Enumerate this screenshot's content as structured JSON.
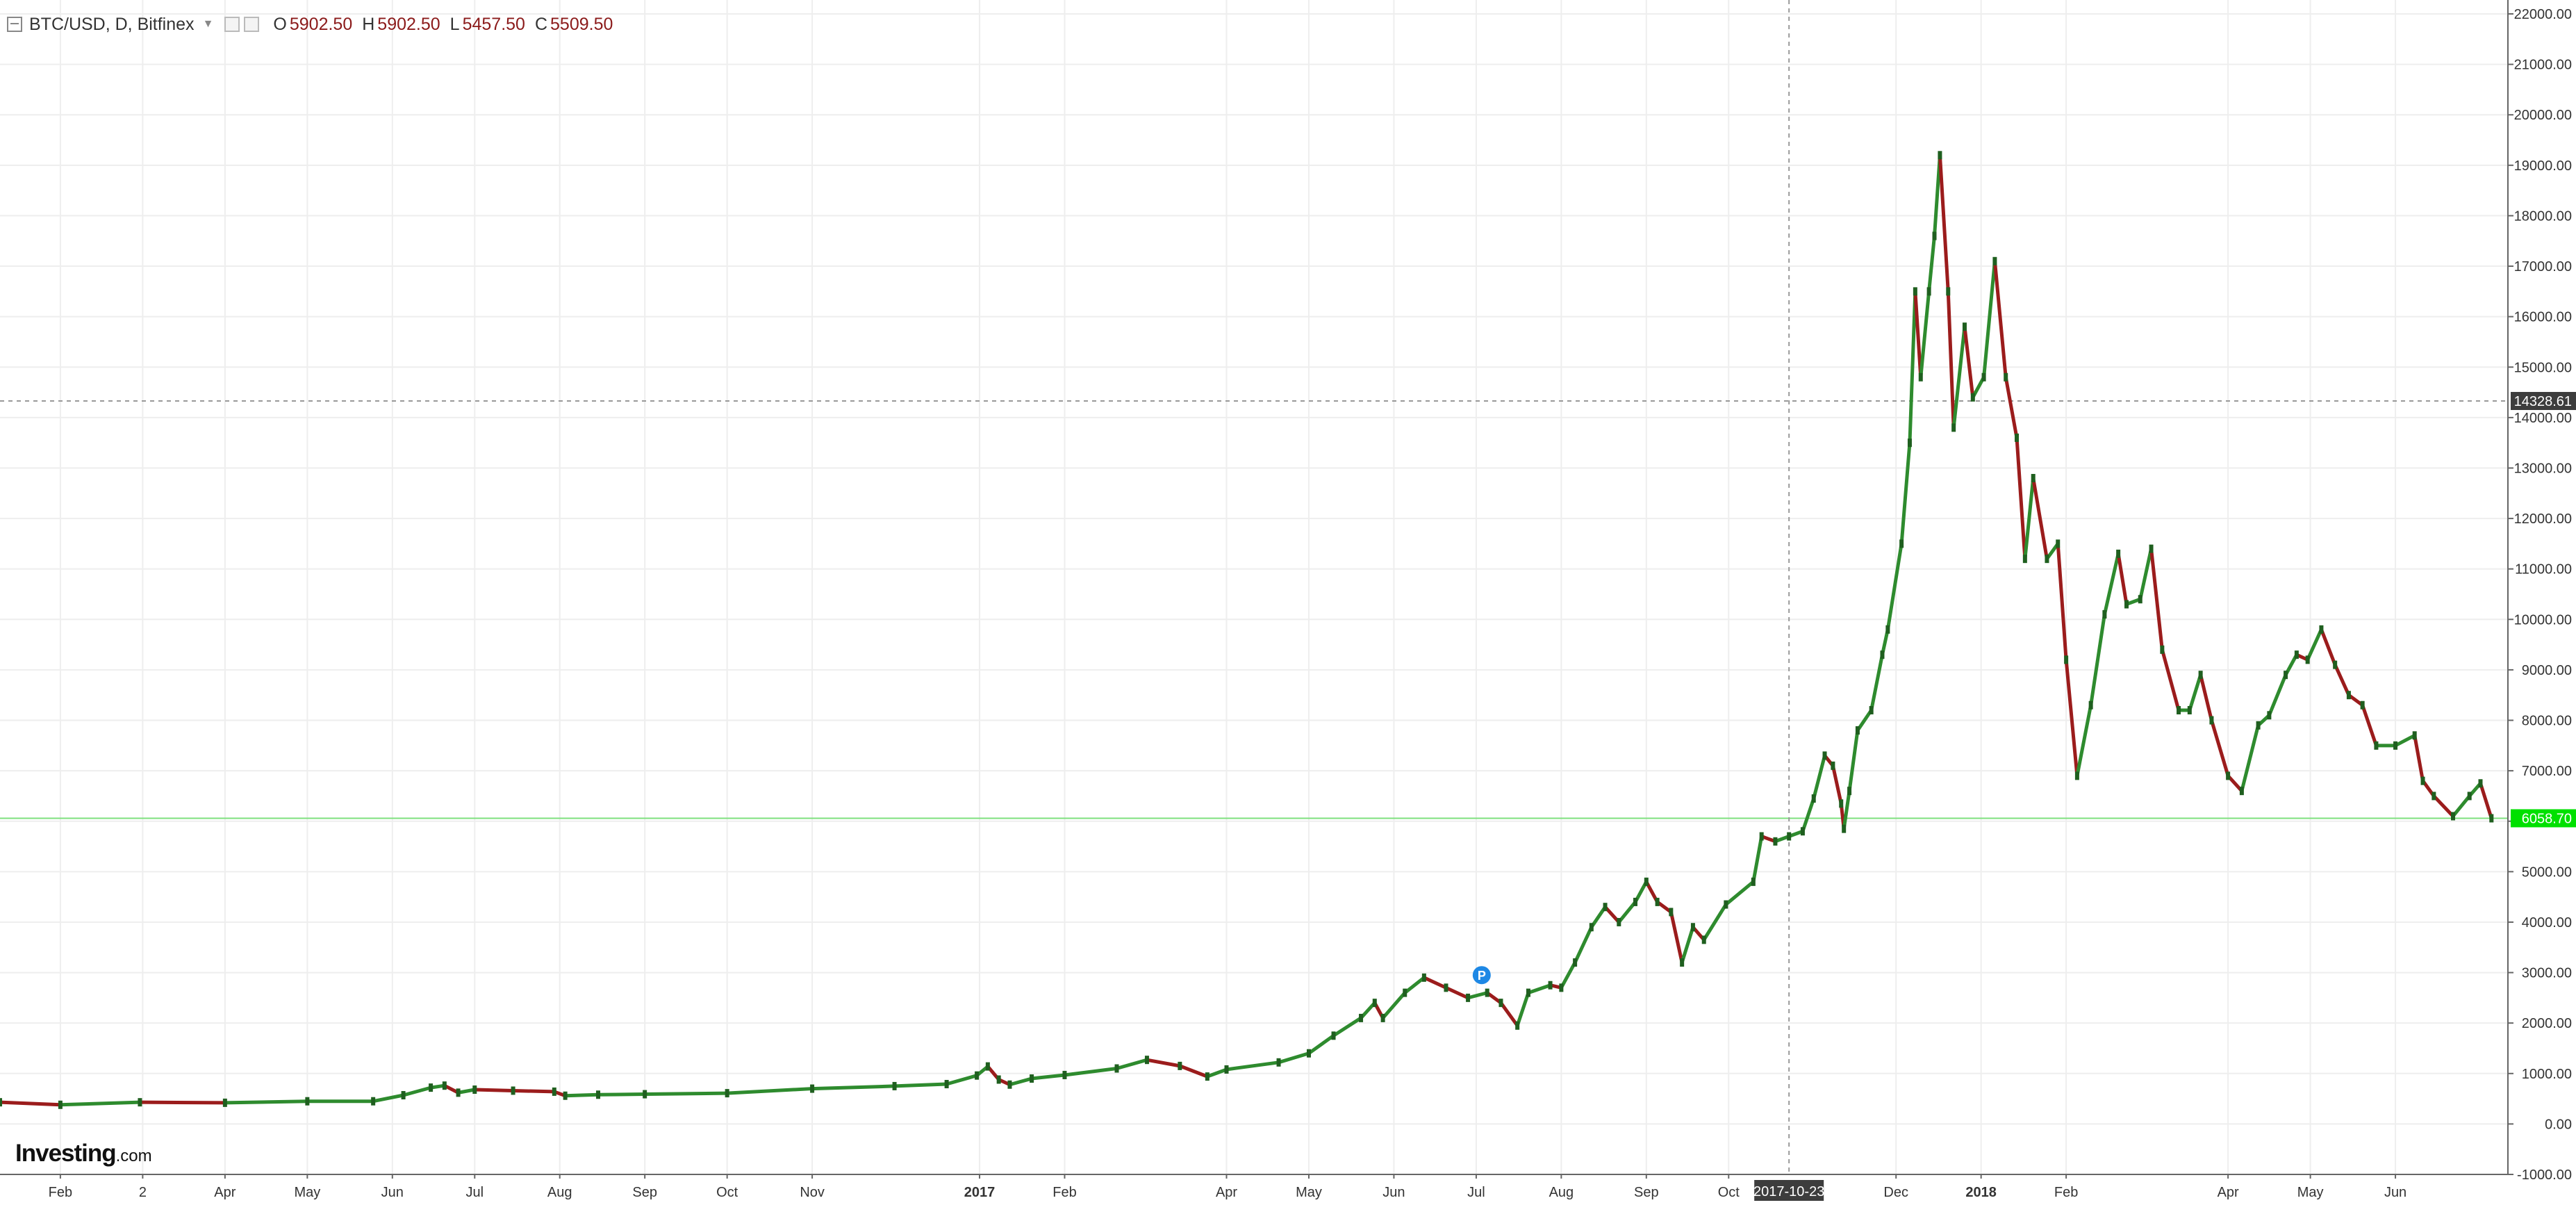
{
  "legend": {
    "symbol": "BTC/USD, D, Bitfinex",
    "open_label": "O",
    "open": "5902.50",
    "high_label": "H",
    "high": "5902.50",
    "low_label": "L",
    "low": "5457.50",
    "close_label": "C",
    "close": "5509.50"
  },
  "logo": {
    "main": "Investing",
    "suffix": ".com"
  },
  "colors": {
    "up": "#2e8b2e",
    "down": "#9b1c1c",
    "grid": "#eeeeee",
    "last_price": "#00e000",
    "crosshair_tag": "#3d3d3d"
  },
  "chart_data": {
    "type": "line",
    "title": "",
    "xlabel": "",
    "ylabel": "",
    "ylim": [
      -1000,
      22000
    ],
    "y_ticks": [
      "22000.00",
      "21000.00",
      "20000.00",
      "19000.00",
      "18000.00",
      "17000.00",
      "16000.00",
      "15000.00",
      "14000.00",
      "13000.00",
      "12000.00",
      "11000.00",
      "10000.00",
      "9000.00",
      "8000.00",
      "7000.00",
      "6000.00",
      "5000.00",
      "4000.00",
      "3000.00",
      "2000.00",
      "1000.00",
      "0.00",
      "-1000.00"
    ],
    "x_ticks": [
      {
        "label": "Feb",
        "date": "2016-02-01",
        "bold": false
      },
      {
        "label": "2",
        "date": "2016-03-02",
        "bold": false
      },
      {
        "label": "Apr",
        "date": "2016-04-01",
        "bold": false
      },
      {
        "label": "May",
        "date": "2016-05-01",
        "bold": false
      },
      {
        "label": "Jun",
        "date": "2016-06-01",
        "bold": false
      },
      {
        "label": "Jul",
        "date": "2016-07-01",
        "bold": false
      },
      {
        "label": "Aug",
        "date": "2016-08-01",
        "bold": false
      },
      {
        "label": "Sep",
        "date": "2016-09-01",
        "bold": false
      },
      {
        "label": "Oct",
        "date": "2016-10-01",
        "bold": false
      },
      {
        "label": "Nov",
        "date": "2016-11-01",
        "bold": false
      },
      {
        "label": "2017",
        "date": "2017-01-01",
        "bold": true
      },
      {
        "label": "Feb",
        "date": "2017-02-01",
        "bold": false
      },
      {
        "label": "Apr",
        "date": "2017-04-01",
        "bold": false
      },
      {
        "label": "May",
        "date": "2017-05-01",
        "bold": false
      },
      {
        "label": "Jun",
        "date": "2017-06-01",
        "bold": false
      },
      {
        "label": "Jul",
        "date": "2017-07-01",
        "bold": false
      },
      {
        "label": "Aug",
        "date": "2017-08-01",
        "bold": false
      },
      {
        "label": "Sep",
        "date": "2017-09-01",
        "bold": false
      },
      {
        "label": "Oct",
        "date": "2017-10-01",
        "bold": false
      },
      {
        "label": "Dec",
        "date": "2017-12-01",
        "bold": false
      },
      {
        "label": "2018",
        "date": "2018-01-01",
        "bold": true
      },
      {
        "label": "Feb",
        "date": "2018-02-01",
        "bold": false
      },
      {
        "label": "Apr",
        "date": "2018-04-01",
        "bold": false
      },
      {
        "label": "May",
        "date": "2018-05-01",
        "bold": false
      },
      {
        "label": "Jun",
        "date": "2018-06-01",
        "bold": false
      }
    ],
    "x_range": [
      "2016-01-10",
      "2018-07-12"
    ],
    "crosshair": {
      "date": "2017-10-23",
      "date_label": "2017-10-23",
      "price": 14328.61,
      "price_label": "14328.61"
    },
    "last_price": {
      "value": 6058.7,
      "label": "6058.70"
    },
    "pivot_marker": {
      "date": "2017-07-03",
      "price": 2950,
      "label": "P"
    },
    "series": [
      {
        "points": [
          [
            "2016-01-10",
            430
          ],
          [
            "2016-02-01",
            380
          ],
          [
            "2016-03-01",
            430
          ],
          [
            "2016-04-01",
            420
          ],
          [
            "2016-05-01",
            450
          ],
          [
            "2016-05-25",
            450
          ],
          [
            "2016-06-05",
            570
          ],
          [
            "2016-06-15",
            720
          ],
          [
            "2016-06-20",
            760
          ],
          [
            "2016-06-25",
            620
          ],
          [
            "2016-07-01",
            680
          ],
          [
            "2016-07-15",
            660
          ],
          [
            "2016-07-30",
            640
          ],
          [
            "2016-08-03",
            560
          ],
          [
            "2016-08-15",
            580
          ],
          [
            "2016-09-01",
            590
          ],
          [
            "2016-10-01",
            610
          ],
          [
            "2016-11-01",
            700
          ],
          [
            "2016-12-01",
            750
          ],
          [
            "2016-12-20",
            790
          ],
          [
            "2016-12-31",
            960
          ],
          [
            "2017-01-04",
            1140
          ],
          [
            "2017-01-08",
            880
          ],
          [
            "2017-01-12",
            780
          ],
          [
            "2017-01-20",
            900
          ],
          [
            "2017-02-01",
            970
          ],
          [
            "2017-02-20",
            1100
          ],
          [
            "2017-03-03",
            1270
          ],
          [
            "2017-03-15",
            1150
          ],
          [
            "2017-03-25",
            940
          ],
          [
            "2017-04-01",
            1080
          ],
          [
            "2017-04-20",
            1220
          ],
          [
            "2017-05-01",
            1400
          ],
          [
            "2017-05-10",
            1750
          ],
          [
            "2017-05-20",
            2100
          ],
          [
            "2017-05-25",
            2400
          ],
          [
            "2017-05-28",
            2100
          ],
          [
            "2017-06-05",
            2600
          ],
          [
            "2017-06-12",
            2900
          ],
          [
            "2017-06-20",
            2700
          ],
          [
            "2017-06-28",
            2500
          ],
          [
            "2017-07-05",
            2600
          ],
          [
            "2017-07-10",
            2400
          ],
          [
            "2017-07-16",
            1950
          ],
          [
            "2017-07-20",
            2600
          ],
          [
            "2017-07-28",
            2750
          ],
          [
            "2017-08-01",
            2700
          ],
          [
            "2017-08-06",
            3200
          ],
          [
            "2017-08-12",
            3900
          ],
          [
            "2017-08-17",
            4300
          ],
          [
            "2017-08-22",
            4000
          ],
          [
            "2017-08-28",
            4400
          ],
          [
            "2017-09-01",
            4800
          ],
          [
            "2017-09-05",
            4400
          ],
          [
            "2017-09-10",
            4200
          ],
          [
            "2017-09-14",
            3200
          ],
          [
            "2017-09-18",
            3900
          ],
          [
            "2017-09-22",
            3650
          ],
          [
            "2017-09-30",
            4350
          ],
          [
            "2017-10-10",
            4800
          ],
          [
            "2017-10-13",
            5700
          ],
          [
            "2017-10-18",
            5600
          ],
          [
            "2017-10-23",
            5700
          ],
          [
            "2017-10-28",
            5800
          ],
          [
            "2017-11-01",
            6450
          ],
          [
            "2017-11-05",
            7300
          ],
          [
            "2017-11-08",
            7100
          ],
          [
            "2017-11-11",
            6350
          ],
          [
            "2017-11-12",
            5850
          ],
          [
            "2017-11-14",
            6600
          ],
          [
            "2017-11-17",
            7800
          ],
          [
            "2017-11-22",
            8200
          ],
          [
            "2017-11-26",
            9300
          ],
          [
            "2017-11-28",
            9800
          ],
          [
            "2017-12-03",
            11500
          ],
          [
            "2017-12-06",
            13500
          ],
          [
            "2017-12-08",
            16500
          ],
          [
            "2017-12-10",
            14800
          ],
          [
            "2017-12-13",
            16500
          ],
          [
            "2017-12-15",
            17600
          ],
          [
            "2017-12-17",
            19200
          ],
          [
            "2017-12-20",
            16500
          ],
          [
            "2017-12-22",
            13800
          ],
          [
            "2017-12-26",
            15800
          ],
          [
            "2017-12-29",
            14400
          ],
          [
            "2018-01-02",
            14800
          ],
          [
            "2018-01-06",
            17100
          ],
          [
            "2018-01-10",
            14800
          ],
          [
            "2018-01-14",
            13600
          ],
          [
            "2018-01-17",
            11200
          ],
          [
            "2018-01-20",
            12800
          ],
          [
            "2018-01-25",
            11200
          ],
          [
            "2018-01-29",
            11500
          ],
          [
            "2018-02-01",
            9200
          ],
          [
            "2018-02-05",
            6900
          ],
          [
            "2018-02-10",
            8300
          ],
          [
            "2018-02-15",
            10100
          ],
          [
            "2018-02-20",
            11300
          ],
          [
            "2018-02-23",
            10300
          ],
          [
            "2018-02-28",
            10400
          ],
          [
            "2018-03-04",
            11400
          ],
          [
            "2018-03-08",
            9400
          ],
          [
            "2018-03-14",
            8200
          ],
          [
            "2018-03-18",
            8200
          ],
          [
            "2018-03-22",
            8900
          ],
          [
            "2018-03-26",
            8000
          ],
          [
            "2018-04-01",
            6900
          ],
          [
            "2018-04-06",
            6600
          ],
          [
            "2018-04-12",
            7900
          ],
          [
            "2018-04-16",
            8100
          ],
          [
            "2018-04-22",
            8900
          ],
          [
            "2018-04-26",
            9300
          ],
          [
            "2018-04-30",
            9200
          ],
          [
            "2018-05-05",
            9800
          ],
          [
            "2018-05-10",
            9100
          ],
          [
            "2018-05-15",
            8500
          ],
          [
            "2018-05-20",
            8300
          ],
          [
            "2018-05-25",
            7500
          ],
          [
            "2018-06-01",
            7500
          ],
          [
            "2018-06-08",
            7700
          ],
          [
            "2018-06-11",
            6800
          ],
          [
            "2018-06-15",
            6500
          ],
          [
            "2018-06-22",
            6100
          ],
          [
            "2018-06-28",
            6500
          ],
          [
            "2018-07-02",
            6750
          ],
          [
            "2018-07-06",
            6058.7
          ]
        ]
      }
    ]
  }
}
